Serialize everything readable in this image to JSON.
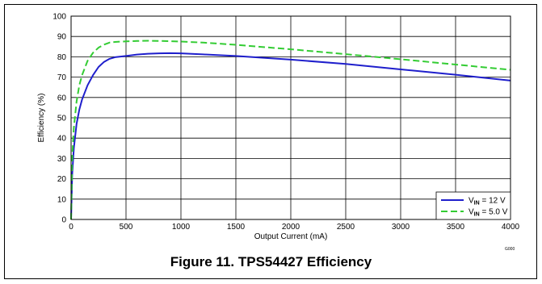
{
  "figure": {
    "caption": "Figure 11. TPS54427 Efficiency",
    "code": "G000"
  },
  "chart_data": {
    "type": "line",
    "title": "",
    "xlabel": "Output Current (mA)",
    "ylabel": "Efficiency (%)",
    "xlim": [
      0,
      4000
    ],
    "ylim": [
      0,
      100
    ],
    "xticks": [
      0,
      500,
      1000,
      1500,
      2000,
      2500,
      3000,
      3500,
      4000
    ],
    "yticks": [
      0,
      10,
      20,
      30,
      40,
      50,
      60,
      70,
      80,
      90,
      100
    ],
    "grid": true,
    "legend_position": "bottom-right",
    "series": [
      {
        "name": "V_IN = 12 V",
        "label_base": "V",
        "label_sub": "IN",
        "label_rest": " = 12 V",
        "color": "#1f1fcc",
        "dash": "solid",
        "x": [
          0,
          10,
          25,
          50,
          75,
          100,
          150,
          200,
          250,
          300,
          350,
          400,
          500,
          600,
          700,
          800,
          900,
          1000,
          1200,
          1500,
          2000,
          2500,
          3000,
          3500,
          4000
        ],
        "y": [
          0,
          22,
          35,
          47,
          54,
          59,
          66,
          71,
          75,
          77.5,
          79,
          79.8,
          80.4,
          81.1,
          81.5,
          81.7,
          81.8,
          81.7,
          81.2,
          80.4,
          78.6,
          76.5,
          73.8,
          71.2,
          68.3
        ]
      },
      {
        "name": "V_IN = 5.0 V",
        "label_base": "V",
        "label_sub": "IN",
        "label_rest": " = 5.0 V",
        "color": "#33cc33",
        "dash": "dashed",
        "x": [
          0,
          10,
          25,
          50,
          75,
          100,
          150,
          200,
          250,
          300,
          350,
          400,
          500,
          600,
          700,
          800,
          900,
          1000,
          1200,
          1500,
          2000,
          2500,
          3000,
          3500,
          4000
        ],
        "y": [
          0,
          30,
          45,
          58,
          66,
          71,
          78,
          82,
          84.5,
          86,
          87,
          87.3,
          87.6,
          87.8,
          87.9,
          87.8,
          87.7,
          87.5,
          87,
          85.9,
          83.7,
          81.3,
          78.8,
          76.2,
          73.6
        ]
      }
    ]
  }
}
